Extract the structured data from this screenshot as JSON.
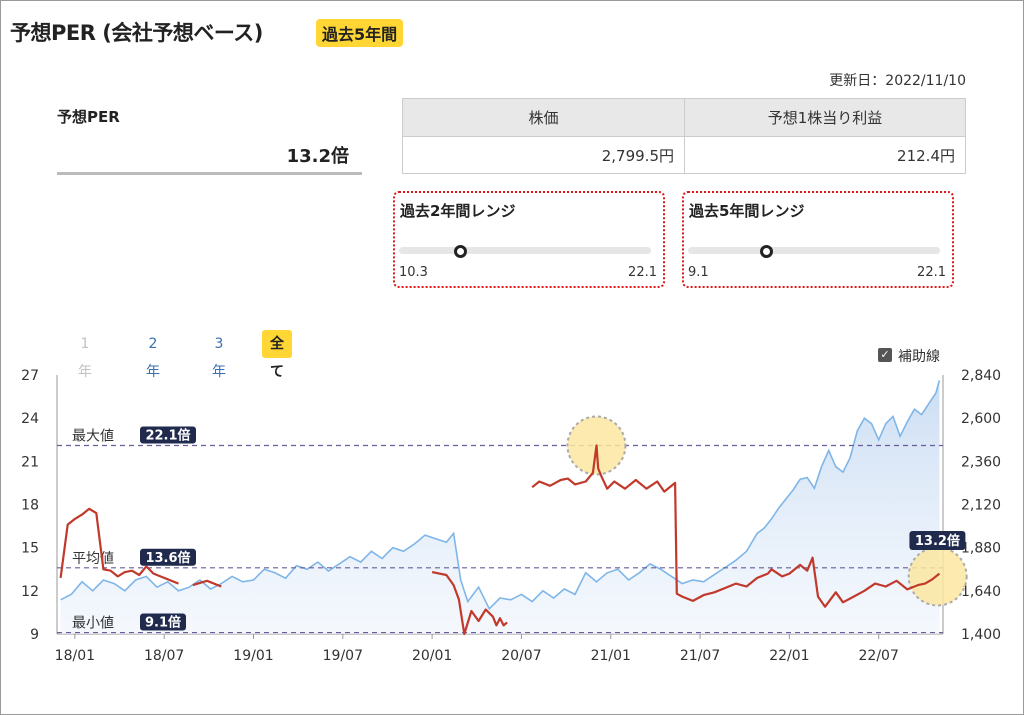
{
  "header": {
    "title": "予想PER (会社予想ベース)",
    "period_badge": "過去5年間",
    "updated": "更新日：2022/11/10"
  },
  "per": {
    "label": "予想PER",
    "value": "13.2倍"
  },
  "stock_table": {
    "headers": [
      "株価",
      "予想1株当り利益"
    ],
    "values": [
      "2,799.5円",
      "212.4円"
    ]
  },
  "ranges": [
    {
      "title": "過去2年間レンジ",
      "min": "10.3",
      "max": "22.1",
      "min_value": 10.3,
      "max_value": 22.1,
      "current": 13.2
    },
    {
      "title": "過去5年間レンジ",
      "min": "9.1",
      "max": "22.1",
      "min_value": 9.1,
      "max_value": 22.1,
      "current": 13.2
    }
  ],
  "period_tabs": [
    {
      "label": "1年",
      "state": "disabled"
    },
    {
      "label": "2年",
      "state": "normal"
    },
    {
      "label": "3年",
      "state": "normal"
    },
    {
      "label": "全て",
      "state": "active"
    }
  ],
  "aux_lines": {
    "label": "補助線",
    "checked": true
  },
  "colors": {
    "per_line": "#c0392b",
    "price_line": "#7fb6e8",
    "price_area": "#dfe9f7",
    "badge_bg": "#ffd633",
    "ref_badge_bg": "#1f2a4d",
    "ref_line": "#6a5d9a",
    "highlight": "#fbe6a0",
    "tab_blue": "#3a6fb0",
    "tab_disabled": "#c2c2c2"
  },
  "chart_data": {
    "type": "line",
    "x_tick_labels": [
      "18/01",
      "18/07",
      "19/01",
      "19/07",
      "20/01",
      "20/07",
      "21/01",
      "21/07",
      "22/01",
      "22/07"
    ],
    "x_ticks": [
      2018.0,
      2018.5,
      2019.0,
      2019.5,
      2020.0,
      2020.5,
      2021.0,
      2021.5,
      2022.0,
      2022.5
    ],
    "xlim": [
      2017.9,
      2022.86
    ],
    "y_left": {
      "ylim": [
        9,
        27
      ],
      "ticks": [
        9,
        12,
        15,
        18,
        21,
        24,
        27
      ]
    },
    "y_right": {
      "ylim": [
        1400,
        2840
      ],
      "ticks": [
        1400,
        1640,
        1880,
        2120,
        2360,
        2600,
        2840
      ],
      "tick_labels": [
        "1,400",
        "1,640",
        "1,880",
        "2,120",
        "2,360",
        "2,600",
        "2,840"
      ]
    },
    "grid": false,
    "series": [
      {
        "axis": "left",
        "x": [
          2017.92,
          2017.96,
          2018.0,
          2018.04,
          2018.08,
          2018.12,
          2018.16,
          2018.2,
          2018.24,
          2018.28,
          2018.32,
          2018.36,
          2018.4,
          2018.44,
          2018.5,
          2018.58,
          2018.66,
          2018.74,
          2018.82,
          2018.9,
          2019.0,
          2019.1,
          2019.2,
          2019.3,
          2019.4,
          2019.5,
          2019.6,
          2019.7,
          2019.8,
          2019.9,
          2020.0,
          2020.08,
          2020.12,
          2020.15,
          2020.18,
          2020.22,
          2020.26,
          2020.3,
          2020.34,
          2020.36,
          2020.38,
          2020.4,
          2020.42,
          2020.56,
          2020.6,
          2020.66,
          2020.72,
          2020.76,
          2020.8,
          2020.86,
          2020.9,
          2020.92,
          2020.93,
          2020.95,
          2020.98,
          2021.02,
          2021.08,
          2021.14,
          2021.2,
          2021.26,
          2021.3,
          2021.36,
          2021.37,
          2021.4,
          2021.46,
          2021.52,
          2021.58,
          2021.64,
          2021.7,
          2021.76,
          2021.82,
          2021.88,
          2021.9,
          2021.96,
          2022.0,
          2022.06,
          2022.1,
          2022.13,
          2022.16,
          2022.2,
          2022.26,
          2022.3,
          2022.36,
          2022.42,
          2022.48,
          2022.54,
          2022.6,
          2022.66,
          2022.72,
          2022.76,
          2022.8,
          2022.84
        ],
        "values": [
          12.9,
          16.6,
          17.0,
          17.3,
          17.7,
          17.4,
          13.5,
          13.4,
          13.0,
          13.3,
          13.4,
          13.1,
          13.7,
          13.2,
          12.9,
          12.5,
          12.4,
          12.7,
          12.3,
          12.6,
          12.4,
          12.8,
          12.1,
          12.4,
          12.6,
          12.7,
          12.5,
          12.8,
          13.0,
          13.4,
          13.3,
          13.1,
          12.4,
          11.4,
          9.0,
          10.6,
          9.9,
          10.7,
          10.2,
          9.6,
          10.1,
          9.6,
          9.8,
          19.2,
          19.6,
          19.3,
          19.7,
          19.8,
          19.4,
          19.6,
          20.2,
          22.1,
          20.5,
          19.9,
          19.1,
          19.6,
          19.1,
          19.7,
          19.1,
          19.6,
          18.9,
          19.5,
          11.8,
          11.6,
          11.3,
          11.7,
          11.9,
          12.2,
          12.5,
          12.3,
          12.9,
          13.2,
          13.5,
          13.0,
          13.2,
          13.8,
          13.4,
          14.3,
          11.6,
          10.9,
          11.9,
          11.2,
          11.6,
          12.0,
          12.5,
          12.3,
          12.7,
          12.1,
          12.4,
          12.5,
          12.8,
          13.2
        ]
      },
      {
        "axis": "right",
        "x": [
          2017.92,
          2017.98,
          2018.04,
          2018.1,
          2018.16,
          2018.22,
          2018.28,
          2018.34,
          2018.4,
          2018.46,
          2018.52,
          2018.58,
          2018.64,
          2018.7,
          2018.76,
          2018.82,
          2018.88,
          2018.94,
          2019.0,
          2019.06,
          2019.12,
          2019.18,
          2019.24,
          2019.3,
          2019.36,
          2019.42,
          2019.48,
          2019.54,
          2019.6,
          2019.66,
          2019.72,
          2019.78,
          2019.84,
          2019.9,
          2019.96,
          2020.02,
          2020.08,
          2020.12,
          2020.16,
          2020.2,
          2020.26,
          2020.32,
          2020.38,
          2020.44,
          2020.5,
          2020.56,
          2020.62,
          2020.68,
          2020.74,
          2020.8,
          2020.86,
          2020.92,
          2020.98,
          2021.04,
          2021.1,
          2021.16,
          2021.22,
          2021.28,
          2021.34,
          2021.4,
          2021.46,
          2021.52,
          2021.58,
          2021.64,
          2021.7,
          2021.76,
          2021.82,
          2021.86,
          2021.9,
          2021.94,
          2021.98,
          2022.02,
          2022.06,
          2022.1,
          2022.14,
          2022.18,
          2022.22,
          2022.26,
          2022.3,
          2022.34,
          2022.38,
          2022.42,
          2022.46,
          2022.5,
          2022.54,
          2022.58,
          2022.62,
          2022.66,
          2022.7,
          2022.74,
          2022.78,
          2022.82,
          2022.84
        ],
        "values": [
          1590,
          1620,
          1690,
          1640,
          1700,
          1680,
          1640,
          1700,
          1720,
          1660,
          1690,
          1640,
          1660,
          1700,
          1650,
          1680,
          1720,
          1690,
          1700,
          1760,
          1740,
          1710,
          1780,
          1760,
          1800,
          1750,
          1790,
          1830,
          1800,
          1860,
          1820,
          1880,
          1860,
          1900,
          1950,
          1930,
          1910,
          1960,
          1700,
          1580,
          1660,
          1540,
          1600,
          1590,
          1620,
          1580,
          1640,
          1600,
          1650,
          1620,
          1740,
          1690,
          1740,
          1760,
          1700,
          1740,
          1790,
          1760,
          1720,
          1680,
          1700,
          1690,
          1730,
          1770,
          1810,
          1860,
          1960,
          1990,
          2040,
          2100,
          2150,
          2200,
          2260,
          2270,
          2210,
          2330,
          2420,
          2330,
          2300,
          2380,
          2530,
          2600,
          2570,
          2480,
          2570,
          2610,
          2500,
          2580,
          2650,
          2620,
          2680,
          2740,
          2810
        ]
      }
    ],
    "reference_lines": [
      {
        "label": "最大値",
        "badge": "22.1倍",
        "value": 22.1
      },
      {
        "label": "平均値",
        "badge": "13.6倍",
        "value": 13.6
      },
      {
        "label": "最小値",
        "badge": "9.1倍",
        "value": 9.1
      }
    ],
    "last_value_badge": "13.2倍",
    "highlights": [
      {
        "x": 2020.92,
        "y": 22.1
      },
      {
        "x": 2022.83,
        "y": 13.0
      }
    ]
  }
}
